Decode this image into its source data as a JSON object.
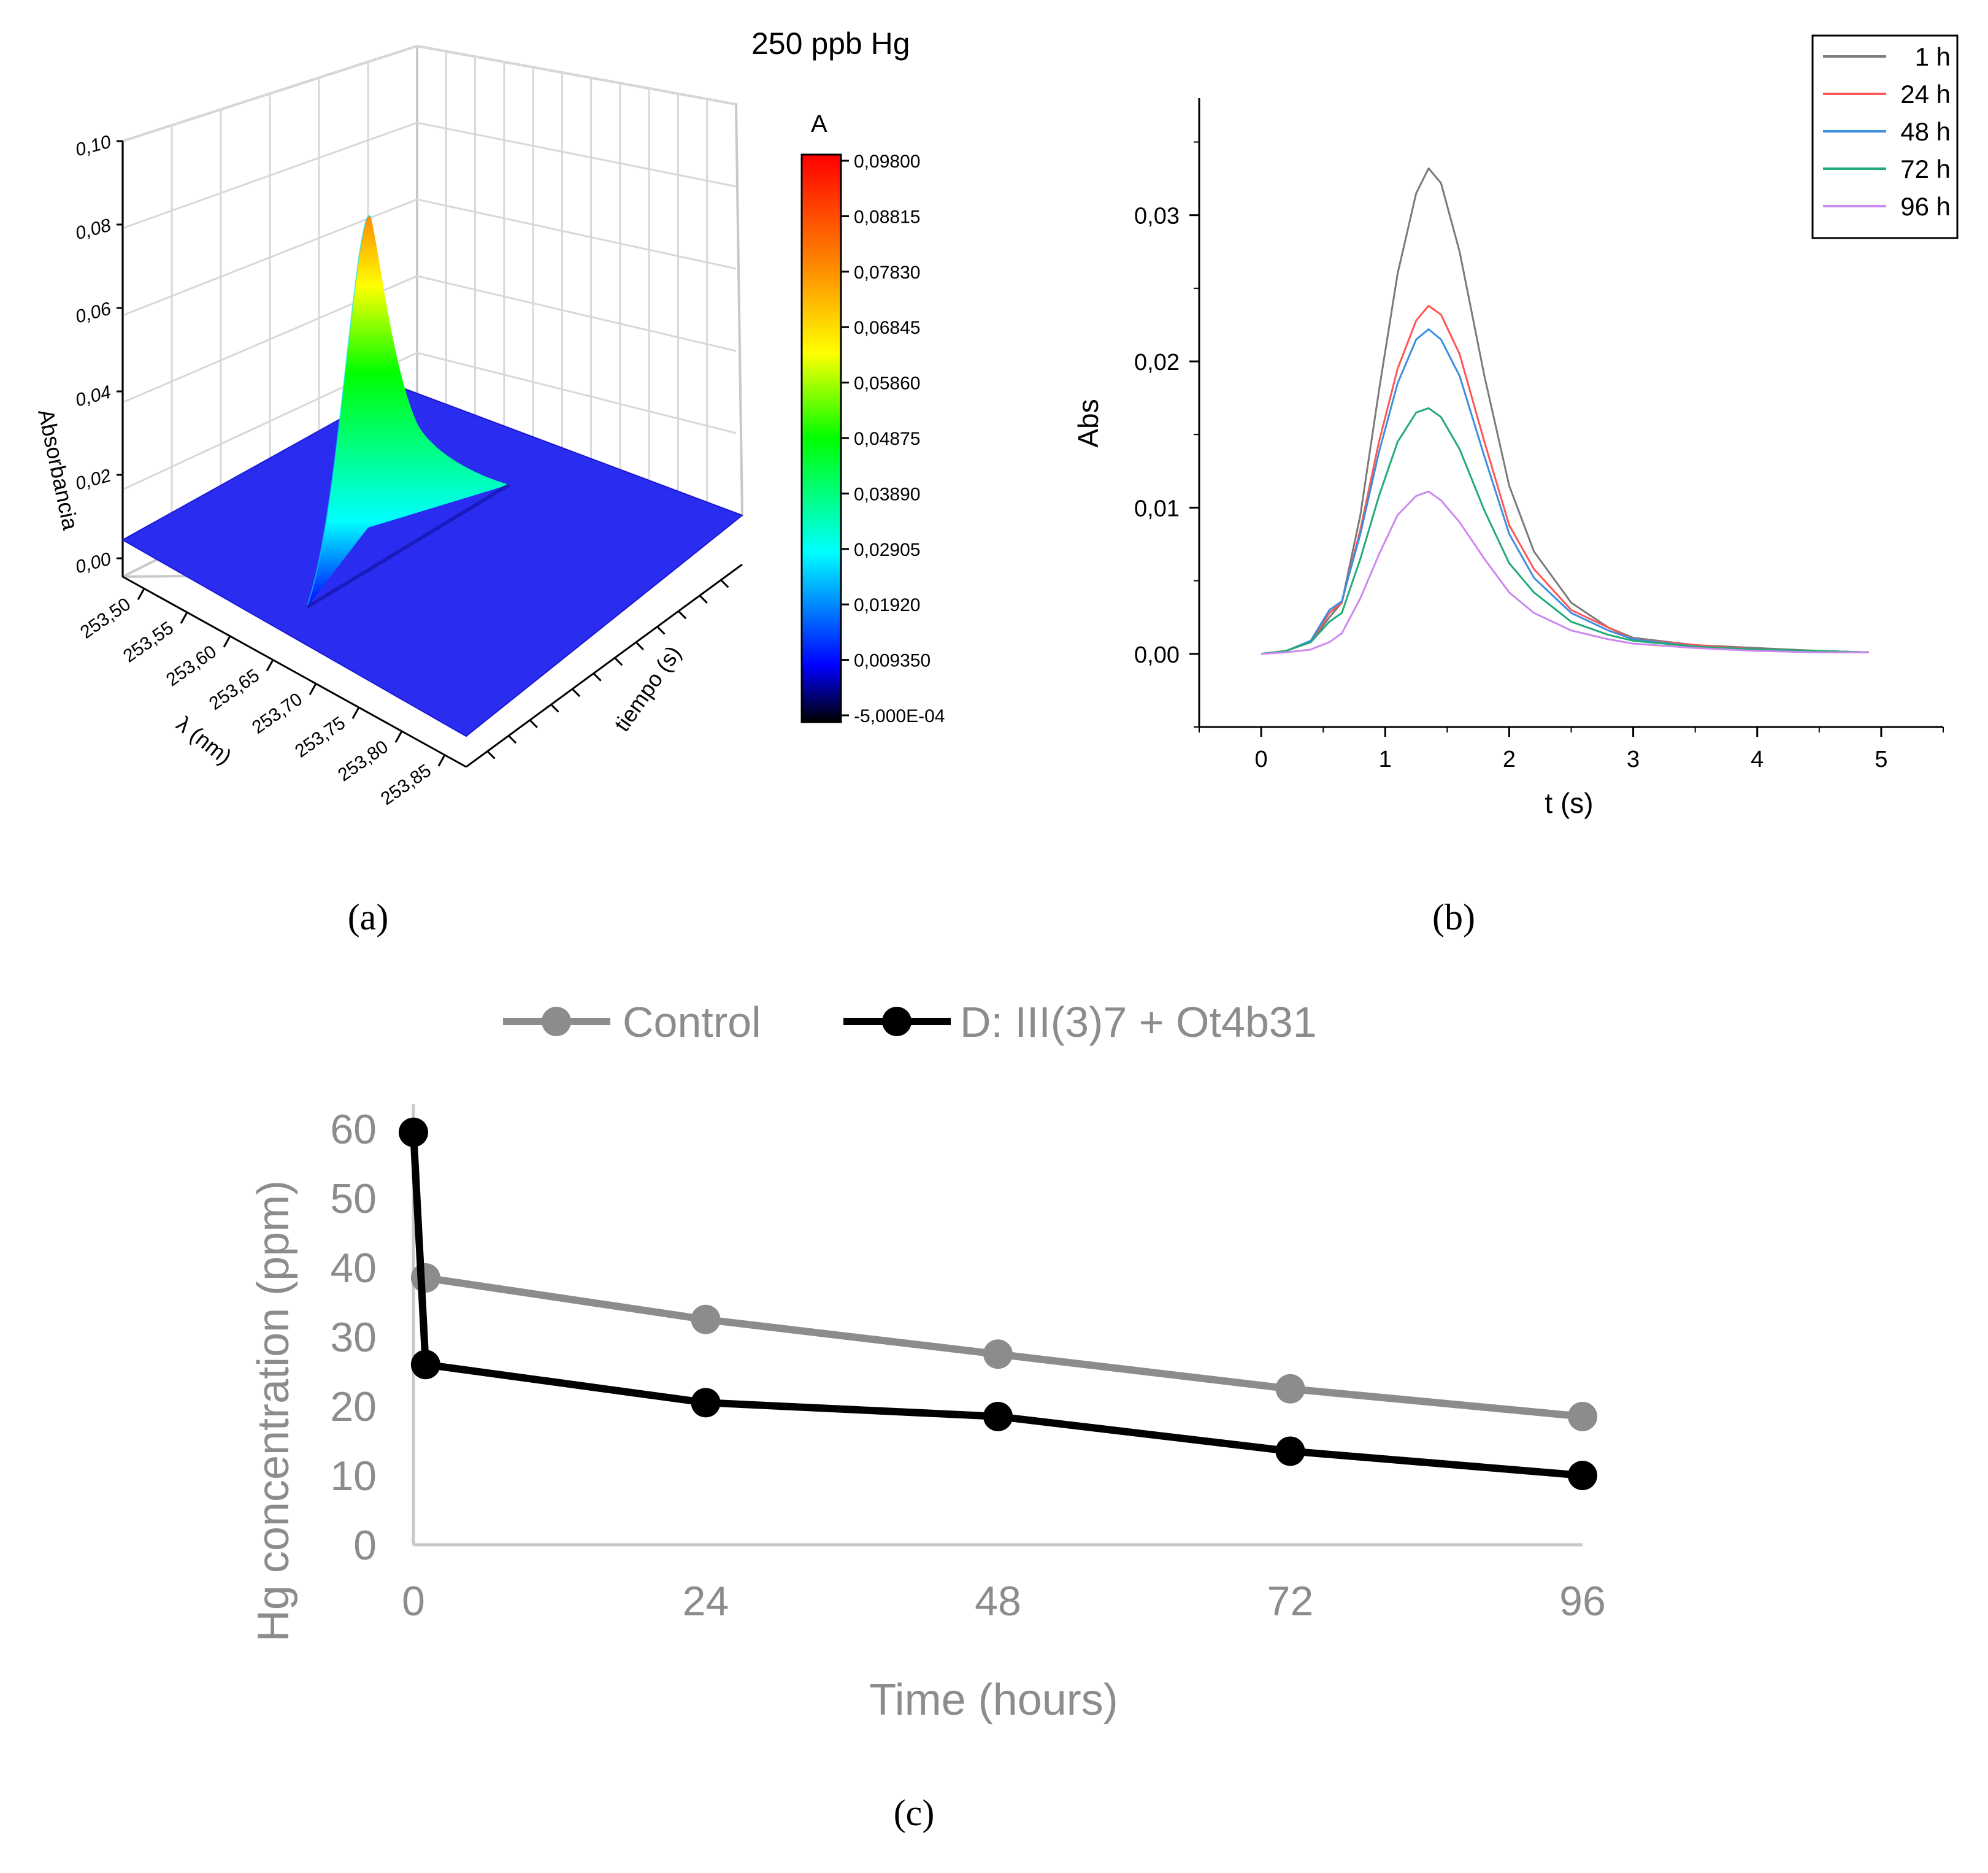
{
  "chart_data": [
    {
      "panel": "a",
      "type": "surface3d",
      "title": "250 ppb Hg",
      "zlabel": "Absorbancia",
      "xlabel": "λ (nm)",
      "ylabel": "tiempo (s)",
      "z_ticks": [
        "0,00",
        "0,02",
        "0,04",
        "0,06",
        "0,08",
        "0,10"
      ],
      "x_ticks": [
        "253,50",
        "253,55",
        "253,60",
        "253,65",
        "253,70",
        "253,75",
        "253,80",
        "253,85"
      ],
      "zlim": [
        0,
        0.1
      ],
      "peak": {
        "lambda_index": 2.9,
        "z": 0.087
      },
      "colorbar": {
        "title": "A",
        "levels": [
          "0,09800",
          "0,08815",
          "0,07830",
          "0,06845",
          "0,05860",
          "0,04875",
          "0,03890",
          "0,02905",
          "0,01920",
          "0,009350",
          "-5,000E-04"
        ],
        "colors": [
          "#ff0000",
          "#ff8000",
          "#ffff00",
          "#00ff00",
          "#00ffff",
          "#0000ff"
        ]
      }
    },
    {
      "panel": "b",
      "type": "line",
      "xlabel": "t (s)",
      "ylabel": "Abs",
      "xlim": [
        -0.5,
        5.5
      ],
      "ylim": [
        -0.005,
        0.038
      ],
      "x_ticks": [
        "0",
        "1",
        "2",
        "3",
        "4",
        "5"
      ],
      "y_ticks": [
        "0,00",
        "0,01",
        "0,02",
        "0,03"
      ],
      "legend": [
        "1 h",
        "24 h",
        "48 h",
        "72 h",
        "96 h"
      ],
      "series": [
        {
          "name": "1 h",
          "color": "#7a7a7a",
          "x": [
            0,
            0.2,
            0.4,
            0.55,
            0.65,
            0.8,
            0.95,
            1.1,
            1.25,
            1.35,
            1.45,
            1.6,
            1.8,
            2.0,
            2.2,
            2.5,
            2.8,
            3.0,
            3.5,
            4.0,
            4.5,
            4.9
          ],
          "y": [
            0,
            0.0002,
            0.0008,
            0.0025,
            0.0035,
            0.0095,
            0.018,
            0.026,
            0.0315,
            0.0332,
            0.0322,
            0.0275,
            0.019,
            0.0115,
            0.007,
            0.0035,
            0.0018,
            0.0011,
            0.0006,
            0.0004,
            0.0002,
            0.0001
          ]
        },
        {
          "name": "24 h",
          "color": "#ff5555",
          "x": [
            0,
            0.2,
            0.4,
            0.55,
            0.65,
            0.8,
            0.95,
            1.1,
            1.25,
            1.35,
            1.45,
            1.6,
            1.8,
            2.0,
            2.2,
            2.5,
            2.8,
            3.0,
            3.5,
            4.0,
            4.5,
            4.9
          ],
          "y": [
            0,
            0.0002,
            0.0008,
            0.0028,
            0.0035,
            0.0085,
            0.0145,
            0.0195,
            0.0228,
            0.0238,
            0.0232,
            0.0205,
            0.0145,
            0.0088,
            0.0058,
            0.003,
            0.0018,
            0.001,
            0.0006,
            0.0003,
            0.0002,
            0.0001
          ]
        },
        {
          "name": "48 h",
          "color": "#3a8fe0",
          "x": [
            0,
            0.2,
            0.4,
            0.55,
            0.65,
            0.8,
            0.95,
            1.1,
            1.25,
            1.35,
            1.45,
            1.6,
            1.8,
            2.0,
            2.2,
            2.5,
            2.8,
            3.0,
            3.5,
            4.0,
            4.5,
            4.9
          ],
          "y": [
            0,
            0.0002,
            0.0009,
            0.003,
            0.0036,
            0.0082,
            0.0138,
            0.0185,
            0.0215,
            0.0222,
            0.0215,
            0.019,
            0.0135,
            0.0082,
            0.0052,
            0.0028,
            0.0016,
            0.001,
            0.0005,
            0.0003,
            0.0002,
            0.0001
          ]
        },
        {
          "name": "72 h",
          "color": "#22aa77",
          "x": [
            0,
            0.2,
            0.4,
            0.55,
            0.65,
            0.8,
            0.95,
            1.1,
            1.25,
            1.35,
            1.45,
            1.6,
            1.8,
            2.0,
            2.2,
            2.5,
            2.8,
            3.0,
            3.5,
            4.0,
            4.5,
            4.9
          ],
          "y": [
            0,
            0.0002,
            0.0008,
            0.0022,
            0.0028,
            0.0065,
            0.0108,
            0.0145,
            0.0165,
            0.0168,
            0.0162,
            0.014,
            0.0098,
            0.0062,
            0.0042,
            0.0022,
            0.0013,
            0.0009,
            0.0005,
            0.0003,
            0.0002,
            0.0001
          ]
        },
        {
          "name": "96 h",
          "color": "#cc88ee",
          "x": [
            0,
            0.2,
            0.4,
            0.55,
            0.65,
            0.8,
            0.95,
            1.1,
            1.25,
            1.35,
            1.45,
            1.6,
            1.8,
            2.0,
            2.2,
            2.5,
            2.8,
            3.0,
            3.5,
            4.0,
            4.5,
            4.9
          ],
          "y": [
            0,
            0.0001,
            0.0003,
            0.0008,
            0.0014,
            0.0038,
            0.0068,
            0.0095,
            0.0108,
            0.0111,
            0.0105,
            0.009,
            0.0065,
            0.0042,
            0.0028,
            0.0016,
            0.001,
            0.0007,
            0.0004,
            0.0002,
            0.0001,
            0.0001
          ]
        }
      ]
    },
    {
      "panel": "c",
      "type": "line",
      "xlabel": "Time (hours)",
      "ylabel": "Hg concentration (ppm)",
      "xlim": [
        0,
        96
      ],
      "ylim": [
        0,
        60
      ],
      "x_ticks": [
        "0",
        "24",
        "48",
        "72",
        "96"
      ],
      "y_ticks": [
        "0",
        "10",
        "20",
        "30",
        "40",
        "50",
        "60"
      ],
      "series": [
        {
          "name": "Control",
          "color": "#8c8c8c",
          "x": [
            1,
            24,
            48,
            72,
            96
          ],
          "y": [
            38.5,
            32.5,
            27.5,
            22.5,
            18.5
          ]
        },
        {
          "name": "D: III(3)7 + Ot4b31",
          "color": "#000000",
          "x": [
            0,
            1,
            24,
            48,
            72,
            96
          ],
          "y": [
            59.5,
            26,
            20.5,
            18.5,
            13.5,
            10
          ]
        }
      ]
    }
  ],
  "captions": {
    "a": "(a)",
    "b": "(b)",
    "c": "(c)"
  }
}
